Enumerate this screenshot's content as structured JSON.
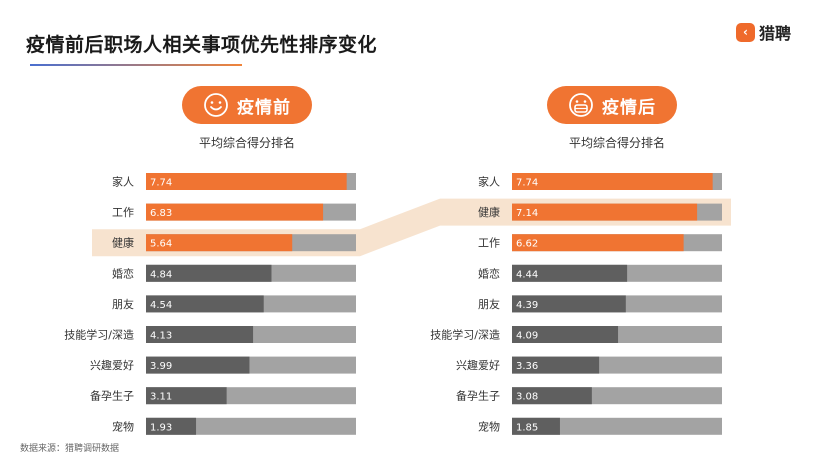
{
  "title": "疫情前后职场人相关事项优先性排序变化",
  "logo": {
    "text": "猎聘",
    "icon": "orange-square-logo-icon"
  },
  "source": "数据来源：猎聘调研数据",
  "colors": {
    "accent": "#f07432",
    "bar_top": "#f07432",
    "bar_other": "#5f5f5f",
    "track": "#a3a3a3",
    "highlight": "#f7e3cf"
  },
  "chart_data": [
    {
      "type": "bar",
      "orientation": "horizontal",
      "title": "疫情前",
      "subtitle": "平均综合得分排名",
      "categories": [
        "家人",
        "工作",
        "健康",
        "婚恋",
        "朋友",
        "技能学习/深造",
        "兴趣爱好",
        "备孕生子",
        "宠物"
      ],
      "values": [
        7.74,
        6.83,
        5.64,
        4.84,
        4.54,
        4.13,
        3.99,
        3.11,
        1.93
      ],
      "highlighted": "健康",
      "icon": "smile-face-icon"
    },
    {
      "type": "bar",
      "orientation": "horizontal",
      "title": "疫情后",
      "subtitle": "平均综合得分排名",
      "categories": [
        "家人",
        "健康",
        "工作",
        "婚恋",
        "朋友",
        "技能学习/深造",
        "兴趣爱好",
        "备孕生子",
        "宠物"
      ],
      "values": [
        7.74,
        7.14,
        6.62,
        4.44,
        4.39,
        4.09,
        3.36,
        3.08,
        1.85
      ],
      "highlighted": "健康",
      "icon": "masked-face-icon"
    }
  ]
}
